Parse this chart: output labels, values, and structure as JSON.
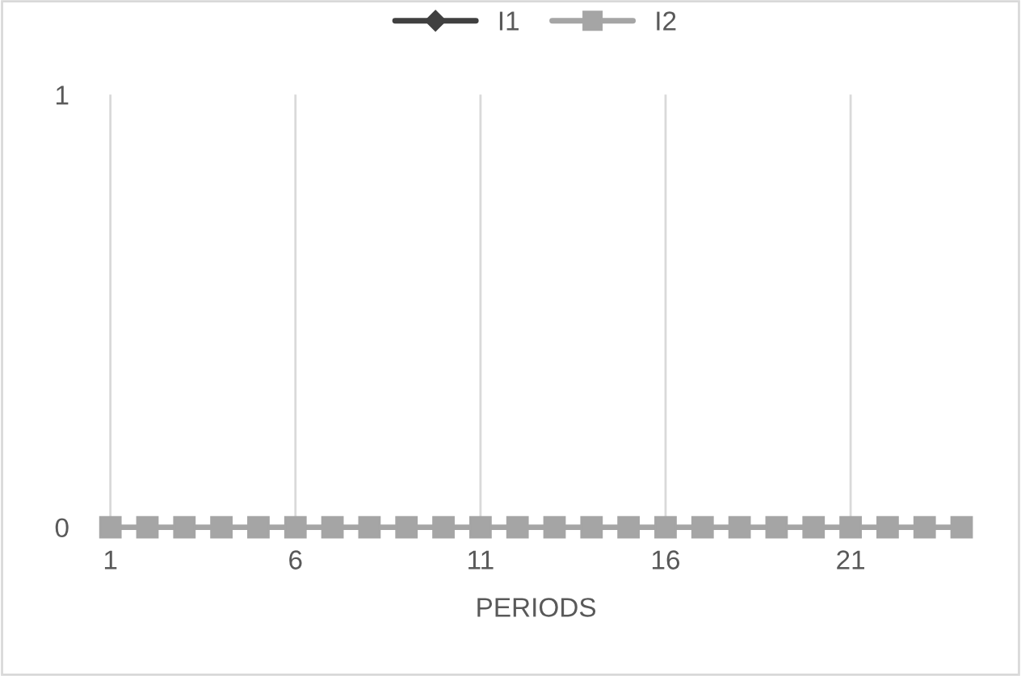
{
  "chart_data": {
    "type": "line",
    "xlabel": "PERIODS",
    "categories": [
      "1",
      null,
      null,
      null,
      null,
      "6",
      null,
      null,
      null,
      null,
      "11",
      null,
      null,
      null,
      null,
      "16",
      null,
      null,
      null,
      null,
      "21",
      null,
      null,
      null
    ],
    "series": [
      {
        "name": "I1",
        "color": "#404040",
        "marker": "diamond",
        "values": [
          null,
          null,
          null,
          null,
          null,
          null,
          null,
          null,
          null,
          null,
          null,
          null,
          null,
          null,
          null,
          null,
          null,
          null,
          null,
          null,
          null,
          null,
          null,
          null
        ]
      },
      {
        "name": "I2",
        "color": "#a5a5a5",
        "marker": "square",
        "values": [
          0,
          0,
          0,
          0,
          0,
          0,
          0,
          0,
          0,
          0,
          0,
          0,
          0,
          0,
          0,
          0,
          0,
          0,
          0,
          0,
          0,
          0,
          0,
          0
        ]
      }
    ],
    "ylim": [
      0,
      1
    ],
    "yticks": [
      0,
      1
    ],
    "grid": "x",
    "legend": "top"
  }
}
